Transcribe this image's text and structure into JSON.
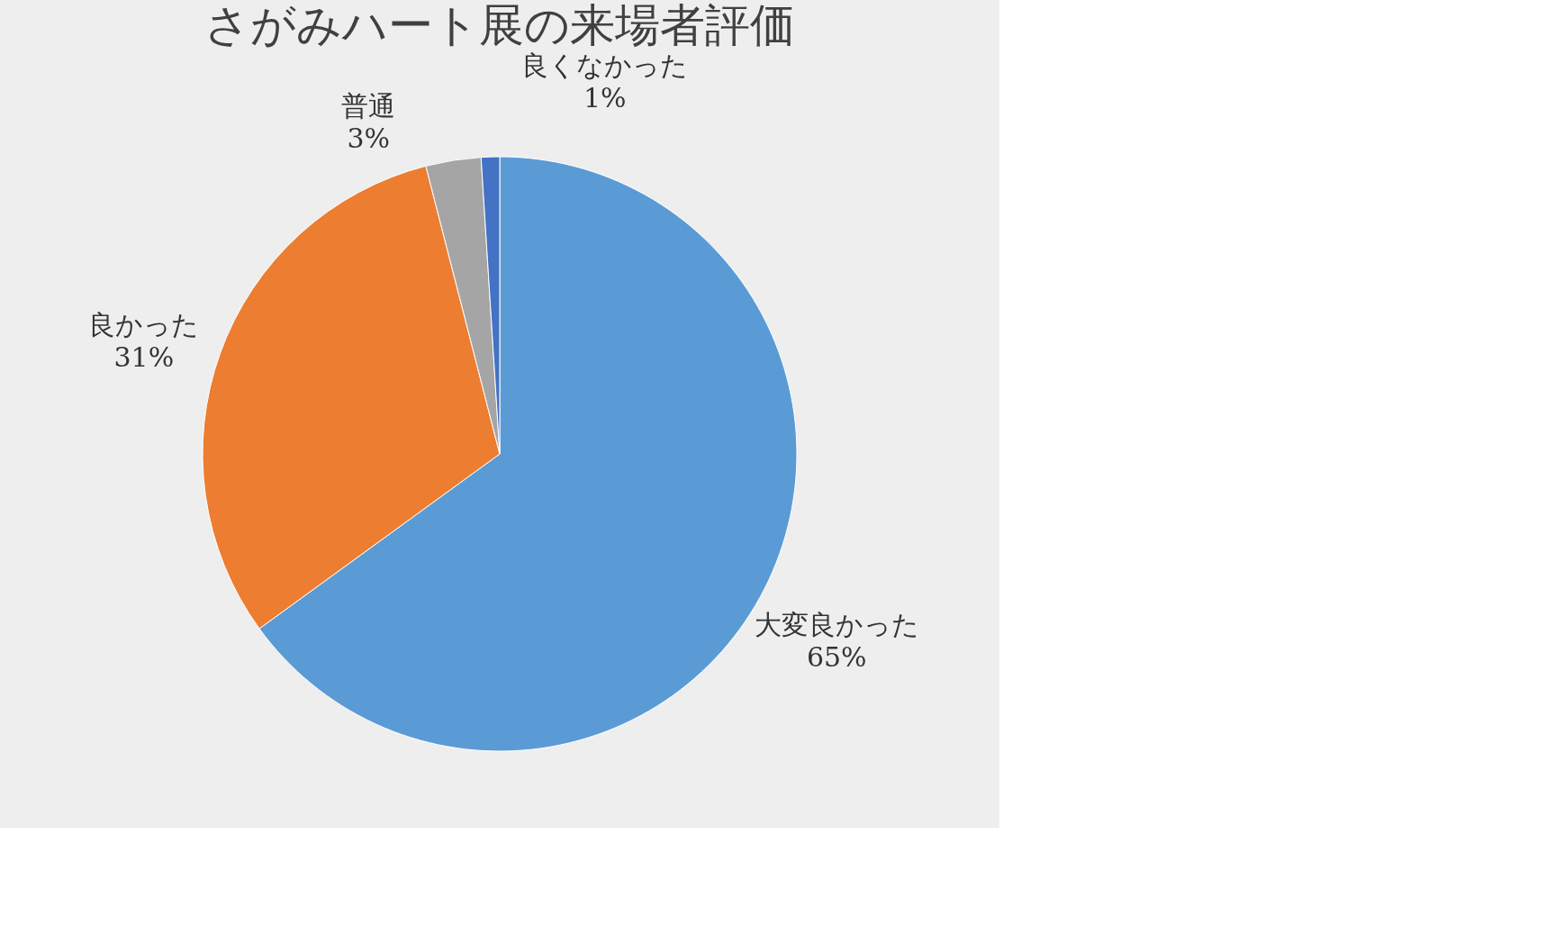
{
  "chart_data": {
    "type": "pie",
    "title": "さがみハート展の来場者評価",
    "categories": [
      "大変良かった",
      "良かった",
      "普通",
      "良くなかった"
    ],
    "values": [
      65,
      31,
      3,
      1
    ],
    "value_labels": [
      "65%",
      "31%",
      "3%",
      "1%"
    ],
    "colors": [
      "#5b9bd5",
      "#ed7d31",
      "#a5a5a5",
      "#4472c4"
    ],
    "legend": false
  }
}
